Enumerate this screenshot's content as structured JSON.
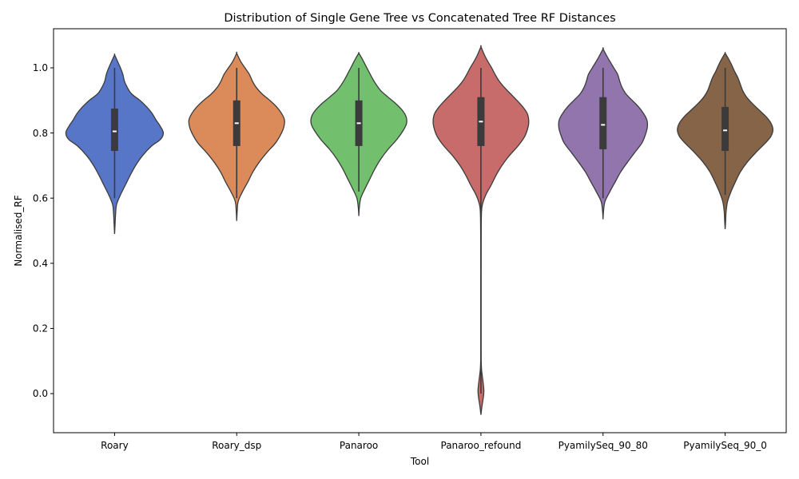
{
  "chart_data": {
    "type": "violin",
    "title": "Distribution of Single Gene Tree vs Concatenated Tree RF Distances",
    "xlabel": "Tool",
    "ylabel": "Normalised_RF",
    "ylim": [
      -0.12,
      1.12
    ],
    "yticks": [
      0.0,
      0.2,
      0.4,
      0.6,
      0.8,
      1.0
    ],
    "ytick_labels": [
      "0.0",
      "0.2",
      "0.4",
      "0.6",
      "0.8",
      "1.0"
    ],
    "grid": false,
    "categories": [
      "Roary",
      "Roary_dsp",
      "Panaroo",
      "Panaroo_refound",
      "PyamilySeq_90_80",
      "PyamilySeq_90_0"
    ],
    "colors": [
      "#5876c7",
      "#db8a5a",
      "#72c06e",
      "#c76b6b",
      "#9275ad",
      "#866448"
    ],
    "series": [
      {
        "category": "Roary",
        "median": 0.805,
        "q1": 0.745,
        "q3": 0.875,
        "whisker_low": 0.6,
        "whisker_high": 1.0,
        "kde": [
          [
            0.49,
            0.0
          ],
          [
            0.52,
            0.01
          ],
          [
            0.55,
            0.02
          ],
          [
            0.58,
            0.04
          ],
          [
            0.61,
            0.12
          ],
          [
            0.64,
            0.22
          ],
          [
            0.67,
            0.32
          ],
          [
            0.7,
            0.43
          ],
          [
            0.73,
            0.57
          ],
          [
            0.76,
            0.76
          ],
          [
            0.78,
            0.94
          ],
          [
            0.8,
            1.0
          ],
          [
            0.82,
            0.94
          ],
          [
            0.84,
            0.85
          ],
          [
            0.86,
            0.77
          ],
          [
            0.88,
            0.66
          ],
          [
            0.9,
            0.52
          ],
          [
            0.92,
            0.35
          ],
          [
            0.94,
            0.26
          ],
          [
            0.96,
            0.2
          ],
          [
            0.98,
            0.17
          ],
          [
            1.0,
            0.12
          ],
          [
            1.02,
            0.06
          ],
          [
            1.04,
            0.0
          ]
        ]
      },
      {
        "category": "Roary_dsp",
        "median": 0.83,
        "q1": 0.76,
        "q3": 0.9,
        "whisker_low": 0.6,
        "whisker_high": 1.0,
        "kde": [
          [
            0.53,
            0.0
          ],
          [
            0.56,
            0.01
          ],
          [
            0.59,
            0.03
          ],
          [
            0.62,
            0.12
          ],
          [
            0.65,
            0.23
          ],
          [
            0.68,
            0.33
          ],
          [
            0.71,
            0.46
          ],
          [
            0.74,
            0.62
          ],
          [
            0.77,
            0.8
          ],
          [
            0.8,
            0.92
          ],
          [
            0.82,
            0.97
          ],
          [
            0.84,
            0.98
          ],
          [
            0.86,
            0.92
          ],
          [
            0.88,
            0.82
          ],
          [
            0.9,
            0.68
          ],
          [
            0.92,
            0.52
          ],
          [
            0.94,
            0.4
          ],
          [
            0.96,
            0.32
          ],
          [
            0.98,
            0.26
          ],
          [
            1.0,
            0.17
          ],
          [
            1.02,
            0.08
          ],
          [
            1.045,
            0.0
          ]
        ]
      },
      {
        "category": "Panaroo",
        "median": 0.83,
        "q1": 0.76,
        "q3": 0.9,
        "whisker_low": 0.62,
        "whisker_high": 1.0,
        "kde": [
          [
            0.545,
            0.0
          ],
          [
            0.57,
            0.01
          ],
          [
            0.6,
            0.04
          ],
          [
            0.63,
            0.13
          ],
          [
            0.66,
            0.23
          ],
          [
            0.69,
            0.33
          ],
          [
            0.72,
            0.45
          ],
          [
            0.75,
            0.6
          ],
          [
            0.78,
            0.78
          ],
          [
            0.81,
            0.92
          ],
          [
            0.83,
            0.98
          ],
          [
            0.85,
            0.97
          ],
          [
            0.87,
            0.89
          ],
          [
            0.89,
            0.76
          ],
          [
            0.91,
            0.6
          ],
          [
            0.93,
            0.45
          ],
          [
            0.95,
            0.35
          ],
          [
            0.97,
            0.27
          ],
          [
            0.99,
            0.2
          ],
          [
            1.01,
            0.13
          ],
          [
            1.03,
            0.06
          ],
          [
            1.045,
            0.0
          ]
        ]
      },
      {
        "category": "Panaroo_refound",
        "median": 0.835,
        "q1": 0.76,
        "q3": 0.91,
        "whisker_low": 0.0,
        "whisker_high": 1.0,
        "kde": [
          [
            -0.065,
            0.0
          ],
          [
            -0.04,
            0.02
          ],
          [
            -0.01,
            0.05
          ],
          [
            0.01,
            0.06
          ],
          [
            0.04,
            0.04
          ],
          [
            0.07,
            0.015
          ],
          [
            0.1,
            0.005
          ],
          [
            0.15,
            0.003
          ],
          [
            0.3,
            0.003
          ],
          [
            0.45,
            0.004
          ],
          [
            0.55,
            0.01
          ],
          [
            0.58,
            0.03
          ],
          [
            0.61,
            0.1
          ],
          [
            0.64,
            0.21
          ],
          [
            0.67,
            0.31
          ],
          [
            0.7,
            0.43
          ],
          [
            0.73,
            0.58
          ],
          [
            0.76,
            0.76
          ],
          [
            0.79,
            0.9
          ],
          [
            0.82,
            0.97
          ],
          [
            0.84,
            0.98
          ],
          [
            0.86,
            0.95
          ],
          [
            0.88,
            0.86
          ],
          [
            0.9,
            0.74
          ],
          [
            0.92,
            0.61
          ],
          [
            0.94,
            0.48
          ],
          [
            0.96,
            0.37
          ],
          [
            0.98,
            0.29
          ],
          [
            1.0,
            0.22
          ],
          [
            1.02,
            0.14
          ],
          [
            1.04,
            0.07
          ],
          [
            1.065,
            0.0
          ]
        ]
      },
      {
        "category": "PyamilySeq_90_80",
        "median": 0.825,
        "q1": 0.75,
        "q3": 0.91,
        "whisker_low": 0.6,
        "whisker_high": 1.0,
        "kde": [
          [
            0.535,
            0.0
          ],
          [
            0.56,
            0.01
          ],
          [
            0.59,
            0.04
          ],
          [
            0.62,
            0.14
          ],
          [
            0.65,
            0.25
          ],
          [
            0.68,
            0.36
          ],
          [
            0.71,
            0.5
          ],
          [
            0.74,
            0.65
          ],
          [
            0.77,
            0.8
          ],
          [
            0.8,
            0.88
          ],
          [
            0.82,
            0.91
          ],
          [
            0.84,
            0.9
          ],
          [
            0.86,
            0.83
          ],
          [
            0.88,
            0.73
          ],
          [
            0.9,
            0.6
          ],
          [
            0.92,
            0.47
          ],
          [
            0.94,
            0.39
          ],
          [
            0.96,
            0.34
          ],
          [
            0.98,
            0.3
          ],
          [
            1.0,
            0.22
          ],
          [
            1.03,
            0.1
          ],
          [
            1.058,
            0.0
          ]
        ]
      },
      {
        "category": "PyamilySeq_90_0",
        "median": 0.808,
        "q1": 0.745,
        "q3": 0.88,
        "whisker_low": 0.61,
        "whisker_high": 1.0,
        "kde": [
          [
            0.505,
            0.0
          ],
          [
            0.53,
            0.01
          ],
          [
            0.56,
            0.02
          ],
          [
            0.59,
            0.05
          ],
          [
            0.62,
            0.12
          ],
          [
            0.65,
            0.21
          ],
          [
            0.68,
            0.31
          ],
          [
            0.71,
            0.45
          ],
          [
            0.74,
            0.63
          ],
          [
            0.77,
            0.83
          ],
          [
            0.79,
            0.94
          ],
          [
            0.81,
            0.98
          ],
          [
            0.83,
            0.94
          ],
          [
            0.85,
            0.84
          ],
          [
            0.87,
            0.7
          ],
          [
            0.89,
            0.56
          ],
          [
            0.91,
            0.44
          ],
          [
            0.93,
            0.36
          ],
          [
            0.95,
            0.31
          ],
          [
            0.97,
            0.26
          ],
          [
            0.99,
            0.19
          ],
          [
            1.01,
            0.13
          ],
          [
            1.03,
            0.06
          ],
          [
            1.045,
            0.0
          ]
        ]
      }
    ]
  }
}
